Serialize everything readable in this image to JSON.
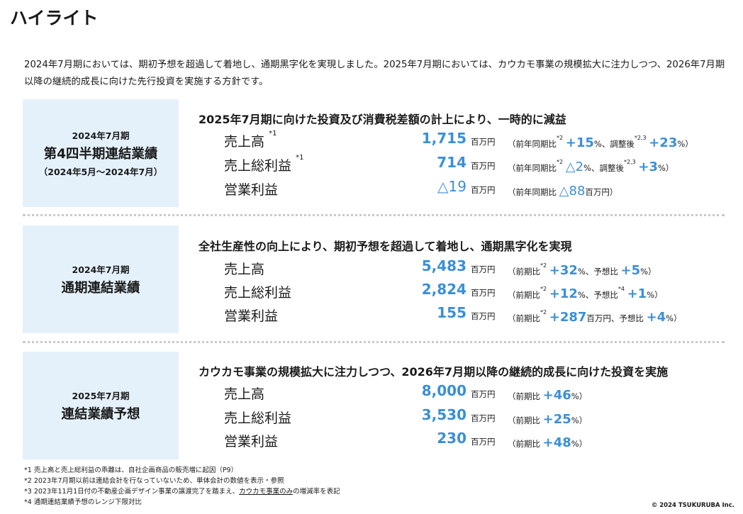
{
  "title": "ハイライト",
  "intro": "2024年7月期においては、期初予想を超過して着地し、通期黒字化を実現しました。2025年7月期においては、カウカモ事業の規模拡大に注力しつつ、2026年7月期以降の継続的成長に向けた先行投資を実施する方針です。",
  "sections": [
    {
      "label_small": "2024年7月期",
      "label_large": "第4四半期連結業績",
      "label_sub": "（2024年5月～2024年7月）",
      "heading": "2025年7月期に向けた投資及び消費税差額の計上により、一時的に減益",
      "rows": [
        {
          "metric": "売上高",
          "metric_sup": "*1",
          "value": "1,715",
          "unit": "百万円",
          "note_open": "（前年同期比",
          "note_sup1": "*2",
          "note_change1": "+15",
          "note_mid": "%、調整後",
          "note_sup2": "*2,3",
          "note_change2": "+23",
          "note_close": "%）"
        },
        {
          "metric": "売上総利益",
          "metric_sup": "*1",
          "value": "714",
          "unit": "百万円",
          "note_open": "（前年同期比",
          "note_sup1": "*2",
          "note_change1": "△2",
          "note_mid": "%、調整後",
          "note_sup2": "*2,3",
          "note_change2": "+3",
          "note_close": "%）"
        },
        {
          "metric": "営業利益",
          "value": "△19",
          "unit": "百万円",
          "note_open": "（前年同期比 ",
          "note_change1": "△88",
          "note_close": "百万円）"
        }
      ]
    },
    {
      "label_small": "2024年7月期",
      "label_large": "通期連結業績",
      "heading": "全社生産性の向上により、期初予想を超過して着地し、通期黒字化を実現",
      "rows": [
        {
          "metric": "売上高",
          "value": "5,483",
          "unit": "百万円",
          "note_open": "（前期比",
          "note_sup1": "*2",
          "note_change1": "+32",
          "note_mid": "%、予想比 ",
          "note_change2": "+5",
          "note_close": "%）"
        },
        {
          "metric": "売上総利益",
          "value": "2,824",
          "unit": "百万円",
          "note_open": "（前期比",
          "note_sup1": "*2",
          "note_change1": "+12",
          "note_mid": "%、予想比",
          "note_sup2": "*4",
          "note_change2": "+1",
          "note_close": "%）"
        },
        {
          "metric": "営業利益",
          "value": "155",
          "unit": "百万円",
          "note_open": "（前期比",
          "note_sup1": "*2",
          "note_change1": "+287",
          "note_mid": "百万円、予想比 ",
          "note_change2": "+4",
          "note_close": "%）"
        }
      ]
    },
    {
      "label_small": "2025年7月期",
      "label_large": "連結業績予想",
      "heading": "カウカモ事業の規模拡大に注力しつつ、2026年7月期以降の継続的成長に向けた投資を実施",
      "rows": [
        {
          "metric": "売上高",
          "value": "8,000",
          "unit": "百万円",
          "note_open": "（前期比 ",
          "note_change1": "+46",
          "note_close": "%）"
        },
        {
          "metric": "売上総利益",
          "value": "3,530",
          "unit": "百万円",
          "note_open": "（前期比 ",
          "note_change1": "+25",
          "note_close": "%）"
        },
        {
          "metric": "営業利益",
          "value": "230",
          "unit": "百万円",
          "note_open": "（前期比 ",
          "note_change1": "+48",
          "note_close": "%）"
        }
      ]
    }
  ],
  "footnotes": {
    "f1": "*1 売上高と売上総利益の乖離は、自社企画商品の販売増に起因（P9）",
    "f2": "*2 2023年7月期以前は連結会計を行なっていないため、単体会計の数値を表示・参照",
    "f3_pre": "*3 2023年11月1日付の不動産企画デザイン事業の譲渡完了を踏まえ、",
    "f3_u": "カウカモ事業のみ",
    "f3_post": "の増減率を表記",
    "f4": "*4 通期連結業績予想のレンジ下限対比"
  },
  "copyright": "© 2024 TSUKURUBA Inc.",
  "colors": {
    "accent": "#3a8fd8",
    "label_bg": "#e4f1fb",
    "divider": "#c9c9c9"
  }
}
